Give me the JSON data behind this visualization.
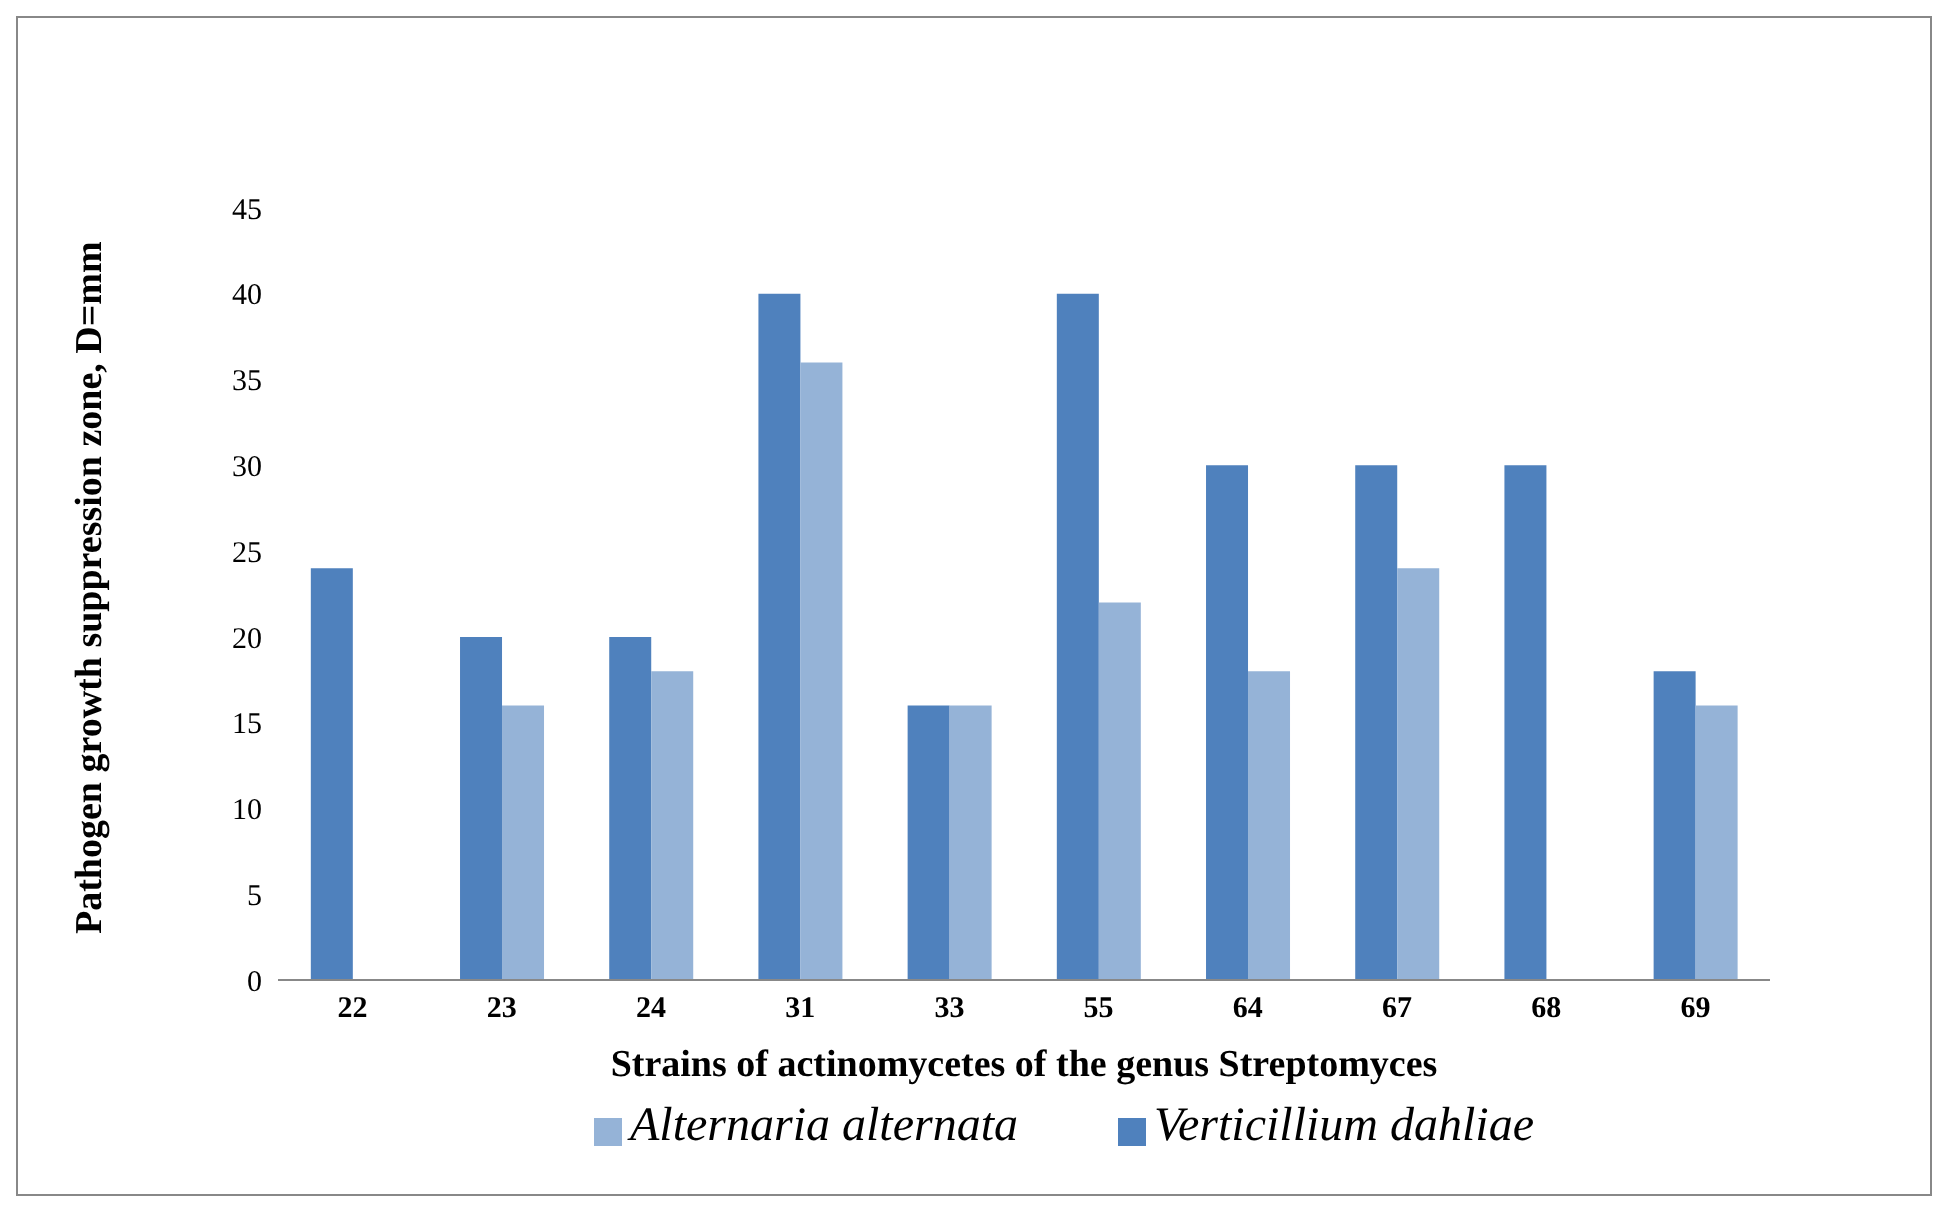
{
  "chart_data": {
    "type": "bar",
    "xlabel": "Strains of actinomycetes of the genus Streptomyces",
    "ylabel": "Pathogen growth suppression  zone, D=mm",
    "categories": [
      "22",
      "23",
      "24",
      "31",
      "33",
      "55",
      "64",
      "67",
      "68",
      "69"
    ],
    "series": [
      {
        "name": "Verticillium dahliae",
        "color": "#4f81bd",
        "values": [
          24,
          20,
          20,
          40,
          16,
          40,
          30,
          30,
          30,
          18
        ]
      },
      {
        "name": "Alternaria alternata",
        "color": "#95b3d7",
        "values": [
          null,
          16,
          18,
          36,
          16,
          22,
          18,
          24,
          null,
          16
        ]
      }
    ],
    "ylim": [
      0,
      45
    ],
    "yticks": [
      0,
      5,
      10,
      15,
      20,
      25,
      30,
      35,
      40,
      45
    ],
    "grid": false,
    "legend": "bottom"
  }
}
